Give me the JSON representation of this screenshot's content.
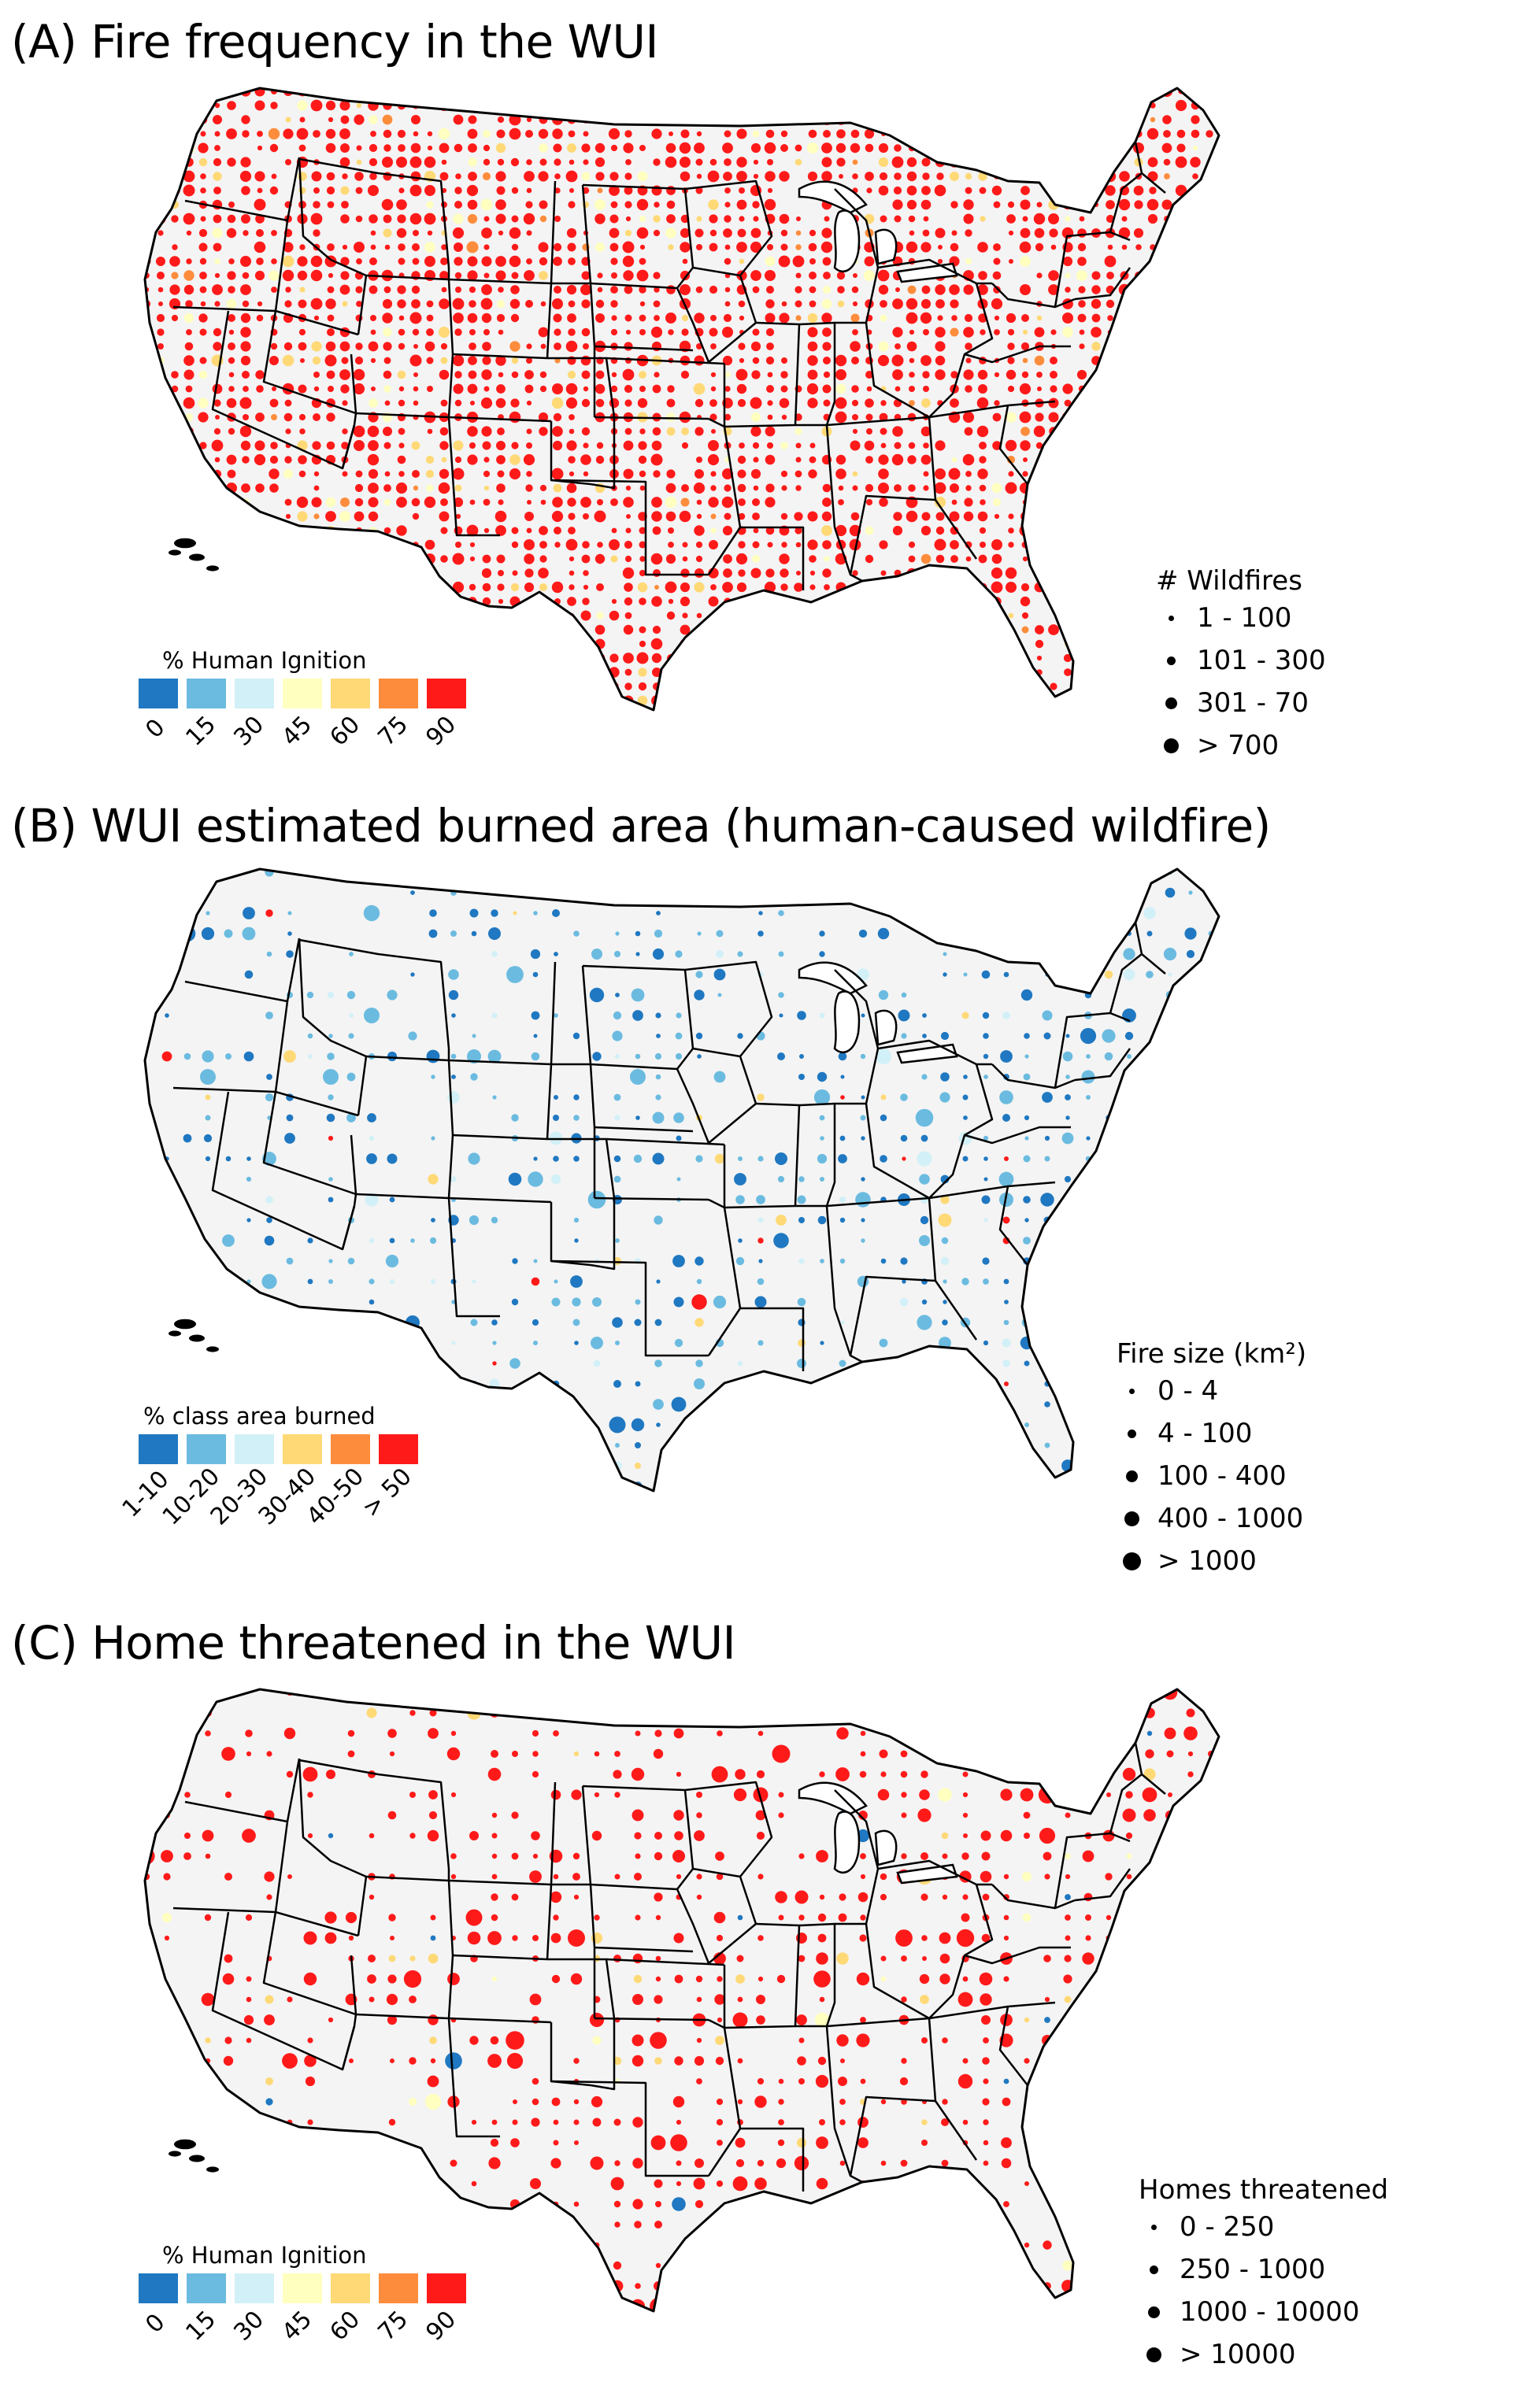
{
  "panels": [
    {
      "id": "A",
      "title": "(A) Fire frequency in the WUI",
      "color_legend": {
        "title": "% Human Ignition",
        "colors": [
          "#1f78c1",
          "#6bbbe0",
          "#d2f0f7",
          "#ffffc0",
          "#fed976",
          "#fd8d3c",
          "#ff1a1a"
        ],
        "ticks": [
          "0",
          "15",
          "30",
          "45",
          "60",
          "75",
          "90"
        ]
      },
      "size_legend": {
        "title": "# Wildfires",
        "classes": [
          "1 - 100",
          "101 - 300",
          "301 - 70",
          "> 700"
        ]
      }
    },
    {
      "id": "B",
      "title": "(B) WUI estimated burned area (human-caused wildfire)",
      "color_legend": {
        "title": "% class area burned",
        "colors": [
          "#1f78c1",
          "#6bbbe0",
          "#d2f0f7",
          "#fed976",
          "#fd8d3c",
          "#ff1a1a"
        ],
        "ticks": [
          "1-10",
          "10-20",
          "20-30",
          "30-40",
          "40-50",
          "> 50"
        ]
      },
      "size_legend": {
        "title": "Fire size (km²)",
        "classes": [
          "0 - 4",
          "4 - 100",
          "100 - 400",
          "400 - 1000",
          "> 1000"
        ]
      }
    },
    {
      "id": "C",
      "title": "(C) Home threatened in the WUI",
      "color_legend": {
        "title": "% Human Ignition",
        "colors": [
          "#1f78c1",
          "#6bbbe0",
          "#d2f0f7",
          "#ffffc0",
          "#fed976",
          "#fd8d3c",
          "#ff1a1a"
        ],
        "ticks": [
          "0",
          "15",
          "30",
          "45",
          "60",
          "75",
          "90"
        ]
      },
      "size_legend": {
        "title": "Homes threatened",
        "classes": [
          "0 - 250",
          "250 - 1000",
          "1000 - 10000",
          "> 10000"
        ]
      }
    }
  ],
  "map_style": {
    "land": "#f4f4f4",
    "border": "#000000",
    "marker_dominant_colors": [
      "#ff1a1a",
      "#2c7fc6",
      "#ff1a1a"
    ]
  }
}
